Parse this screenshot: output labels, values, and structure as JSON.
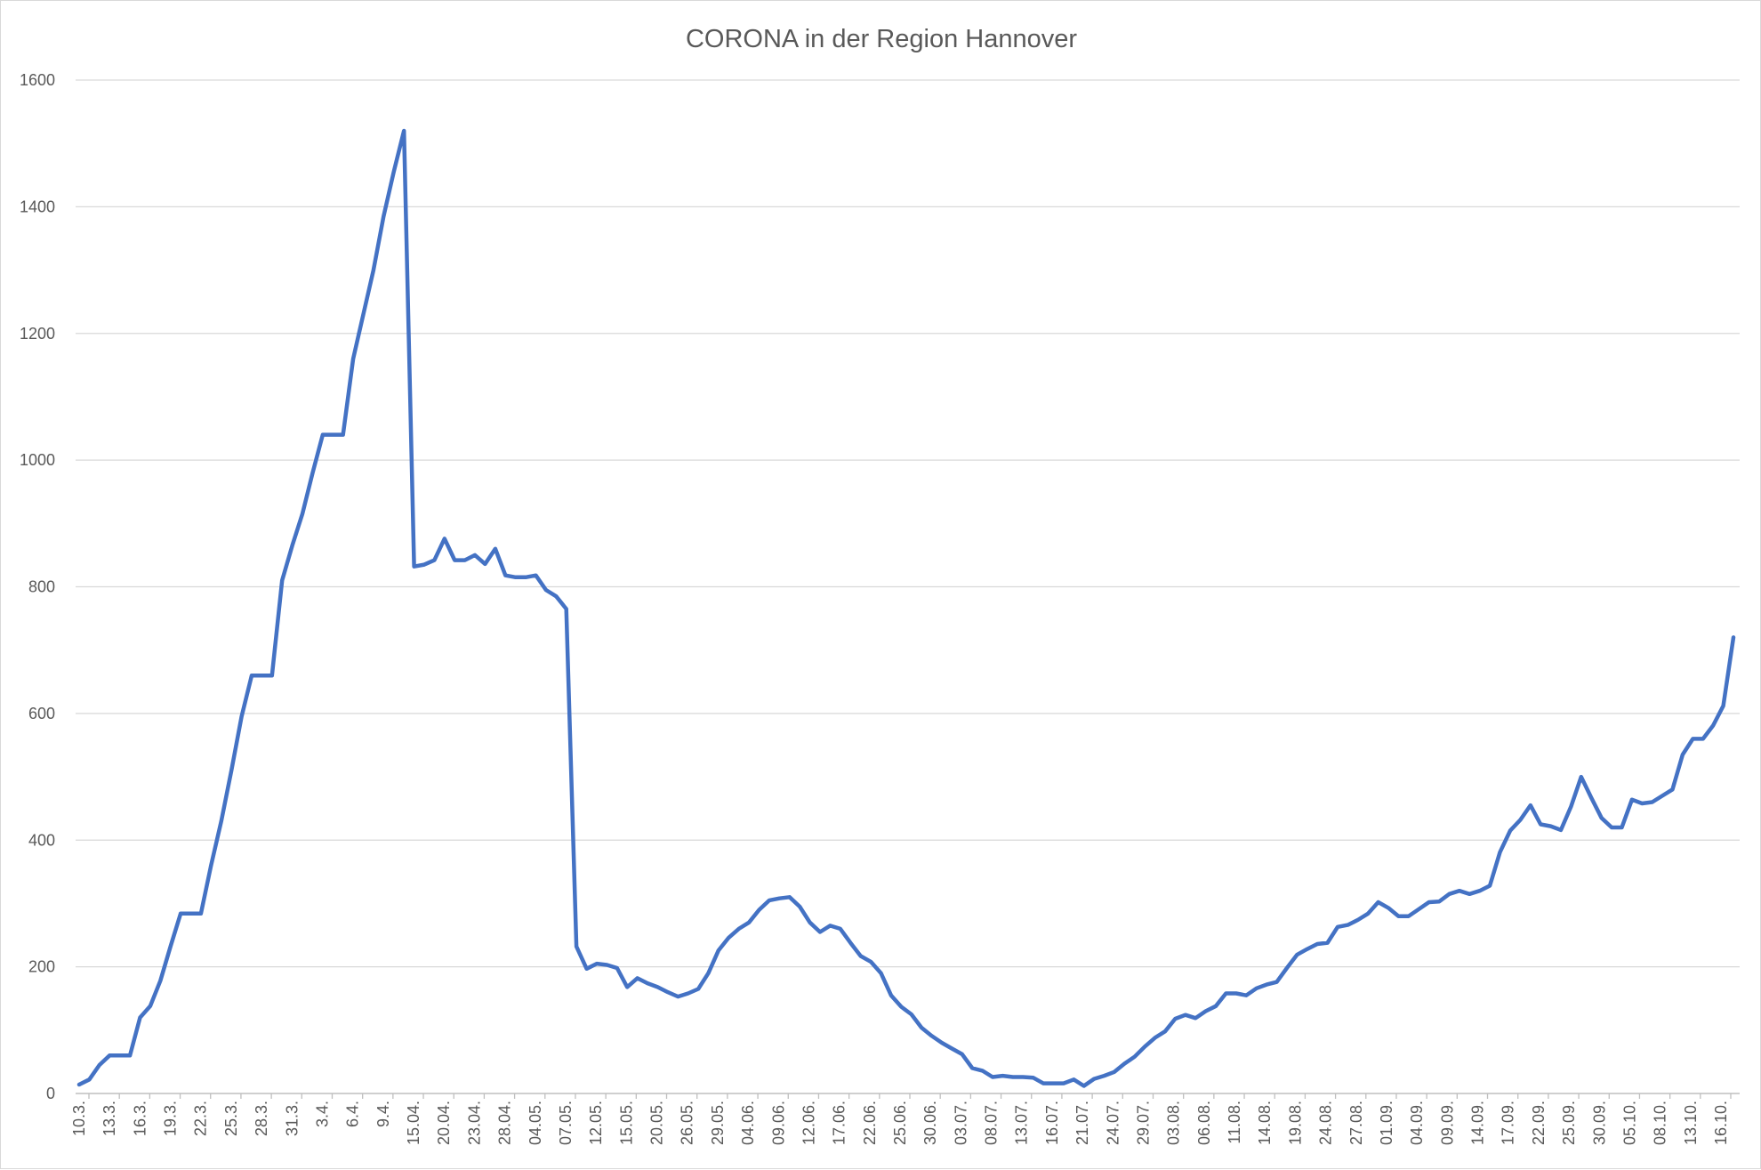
{
  "chart_data": {
    "type": "line",
    "title": "CORONA in der Region Hannover",
    "xlabel": "",
    "ylabel": "",
    "ylim": [
      0,
      1600
    ],
    "yticks": [
      0,
      200,
      400,
      600,
      800,
      1000,
      1200,
      1400,
      1600
    ],
    "grid": true,
    "legend": "none",
    "series_color": "#4472c4",
    "x_tick_labels": [
      "10.3.",
      "13.3.",
      "16.3.",
      "19.3.",
      "22.3.",
      "25.3.",
      "28.3.",
      "31.3.",
      "3.4.",
      "6.4.",
      "9.4.",
      "15.04.",
      "20.04.",
      "23.04.",
      "28.04.",
      "04.05.",
      "07.05.",
      "12.05.",
      "15.05.",
      "20.05.",
      "26.05.",
      "29.05.",
      "04.06.",
      "09.06.",
      "12.06.",
      "17.06.",
      "22.06.",
      "25.06.",
      "30.06.",
      "03.07.",
      "08.07.",
      "13.07.",
      "16.07.",
      "21.07.",
      "24.07.",
      "29.07.",
      "03.08.",
      "06.08.",
      "11.08.",
      "14.08.",
      "19.08.",
      "24.08.",
      "27.08.",
      "01.09.",
      "04.09.",
      "09.09.",
      "14.09.",
      "17.09.",
      "22.09.",
      "25.09.",
      "30.09.",
      "05.10.",
      "08.10.",
      "13.10.",
      "16.10."
    ],
    "series": [
      {
        "values": [
          14,
          22,
          45,
          60,
          60,
          60,
          120,
          138,
          178,
          232,
          284,
          284,
          284,
          360,
          430,
          510,
          595,
          660,
          660,
          660,
          810,
          865,
          915,
          980,
          1040,
          1040,
          1040,
          1160,
          1230,
          1300,
          1385,
          1455,
          1520,
          832,
          835,
          842,
          876,
          842,
          842,
          850,
          836,
          860,
          818,
          815,
          815,
          818,
          795,
          785,
          765,
          232,
          197,
          205,
          203,
          198,
          168,
          182,
          174,
          168,
          160,
          153,
          158,
          165,
          190,
          226,
          246,
          260,
          270,
          290,
          305,
          308,
          310,
          295,
          270,
          255,
          265,
          260,
          238,
          217,
          208,
          190,
          155,
          137,
          125,
          104,
          91,
          80,
          71,
          62,
          40,
          36,
          26,
          28,
          26,
          26,
          25,
          16,
          16,
          16,
          22,
          12,
          23,
          28,
          34,
          47,
          58,
          74,
          88,
          98,
          118,
          124,
          119,
          130,
          138,
          158,
          158,
          155,
          166,
          172,
          176,
          198,
          219,
          228,
          236,
          238,
          263,
          266,
          274,
          284,
          302,
          293,
          280,
          280,
          291,
          302,
          303,
          315,
          320,
          315,
          320,
          328,
          381,
          415,
          432,
          455,
          425,
          422,
          416,
          453,
          500,
          467,
          435,
          420,
          420,
          464,
          458,
          460,
          470,
          480,
          535,
          560,
          560,
          581,
          612,
          720
        ]
      }
    ]
  }
}
